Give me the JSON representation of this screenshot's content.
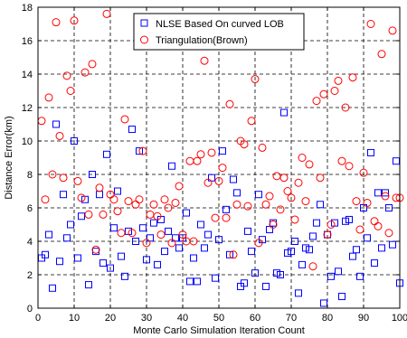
{
  "chart_data": {
    "type": "scatter",
    "xlabel": "Monte Carlo Simulation Iteration Count",
    "ylabel": "Distance Error(km)",
    "xlim": [
      0,
      100
    ],
    "ylim": [
      0,
      18
    ],
    "xticks": [
      0,
      10,
      20,
      30,
      40,
      50,
      60,
      70,
      80,
      90,
      100
    ],
    "yticks": [
      0,
      2,
      4,
      6,
      8,
      10,
      12,
      14,
      16,
      18
    ],
    "grid": true,
    "grid_style": "dashed",
    "legend_position": "top-right",
    "series": [
      {
        "name": "NLSE Based On curved LOB",
        "marker": "square",
        "color": "#0000ff",
        "x": [
          1,
          2,
          3,
          4,
          5,
          6,
          7,
          8,
          9,
          10,
          11,
          12,
          13,
          14,
          15,
          16,
          17,
          18,
          19,
          20,
          21,
          22,
          23,
          24,
          25,
          26,
          27,
          28,
          29,
          30,
          31,
          32,
          33,
          34,
          35,
          36,
          37,
          38,
          39,
          40,
          41,
          42,
          43,
          44,
          45,
          46,
          47,
          48,
          49,
          50,
          51,
          52,
          53,
          54,
          55,
          56,
          57,
          58,
          59,
          60,
          61,
          62,
          63,
          64,
          65,
          66,
          67,
          68,
          69,
          70,
          71,
          72,
          73,
          74,
          75,
          76,
          77,
          78,
          79,
          80,
          81,
          82,
          83,
          84,
          85,
          86,
          87,
          88,
          89,
          90,
          91,
          92,
          93,
          94,
          95,
          96,
          97,
          98,
          99,
          100
        ],
        "y": [
          3.0,
          3.2,
          4.4,
          1.2,
          11.0,
          2.8,
          6.8,
          4.2,
          5.0,
          10.0,
          3.0,
          5.5,
          6.5,
          1.4,
          8.0,
          3.4,
          6.8,
          2.7,
          9.2,
          2.4,
          4.8,
          7.0,
          3.1,
          1.9,
          4.6,
          10.7,
          4.0,
          9.4,
          4.8,
          2.9,
          4.2,
          5.1,
          2.6,
          5.3,
          3.4,
          4.6,
          8.5,
          4.2,
          3.6,
          4.2,
          5.7,
          1.6,
          3.0,
          1.6,
          5.0,
          3.6,
          4.4,
          7.8,
          1.8,
          4.1,
          9.4,
          5.9,
          3.2,
          7.7,
          6.9,
          1.3,
          1.5,
          4.6,
          3.4,
          2.1,
          6.8,
          4.1,
          1.3,
          4.7,
          5.1,
          2.1,
          2.0,
          11.7,
          3.3,
          3.4,
          4.0,
          0.9,
          2.6,
          3.6,
          3.5,
          4.3,
          5.1,
          6.2,
          0.3,
          4.4,
          1.9,
          5.1,
          2.2,
          0.7,
          5.2,
          5.3,
          3.1,
          3.5,
          1.9,
          6.0,
          4.2,
          9.3,
          2.7,
          6.9,
          3.6,
          6.9,
          6.0,
          3.8,
          8.8,
          1.5
        ]
      },
      {
        "name": "Triangulation(Brown)",
        "marker": "circle",
        "color": "#ff0000",
        "x": [
          1,
          2,
          3,
          4,
          5,
          6,
          7,
          8,
          9,
          10,
          11,
          12,
          13,
          14,
          15,
          16,
          17,
          18,
          19,
          20,
          21,
          22,
          23,
          24,
          25,
          26,
          27,
          28,
          29,
          30,
          31,
          32,
          33,
          34,
          35,
          36,
          37,
          38,
          39,
          40,
          41,
          42,
          43,
          44,
          45,
          46,
          47,
          48,
          49,
          50,
          51,
          52,
          53,
          54,
          55,
          56,
          57,
          58,
          59,
          60,
          61,
          62,
          63,
          64,
          65,
          66,
          67,
          68,
          69,
          70,
          71,
          72,
          73,
          74,
          75,
          76,
          77,
          78,
          79,
          80,
          81,
          82,
          83,
          84,
          85,
          86,
          87,
          88,
          89,
          90,
          91,
          92,
          93,
          94,
          95,
          96,
          97,
          98,
          99,
          100
        ],
        "y": [
          11.2,
          6.5,
          12.6,
          8.0,
          17.1,
          10.3,
          7.8,
          13.9,
          13.0,
          17.2,
          7.6,
          6.6,
          14.1,
          5.6,
          14.6,
          3.5,
          7.2,
          5.6,
          17.6,
          6.8,
          6.5,
          5.8,
          4.5,
          11.3,
          6.4,
          4.5,
          6.2,
          6.5,
          9.4,
          3.9,
          5.6,
          6.2,
          5.5,
          4.4,
          6.5,
          6.0,
          3.9,
          6.3,
          7.3,
          4.4,
          4.0,
          8.8,
          4.0,
          8.8,
          9.2,
          14.8,
          7.5,
          9.3,
          5.4,
          7.6,
          8.4,
          5.4,
          12.2,
          3.2,
          6.2,
          10.0,
          9.8,
          6.1,
          11.2,
          13.7,
          3.9,
          9.6,
          6.2,
          6.7,
          5.0,
          7.9,
          5.9,
          7.8,
          7.0,
          6.6,
          5.3,
          7.5,
          9.0,
          6.4,
          8.6,
          2.5,
          12.4,
          7.8,
          12.8,
          4.4,
          5.0,
          13.0,
          13.6,
          8.8,
          12.0,
          8.5,
          13.8,
          6.4,
          4.7,
          8.1,
          6.3,
          17.0,
          5.2,
          4.9,
          15.2,
          6.7,
          4.5,
          16.6,
          6.6,
          6.6
        ]
      }
    ]
  }
}
